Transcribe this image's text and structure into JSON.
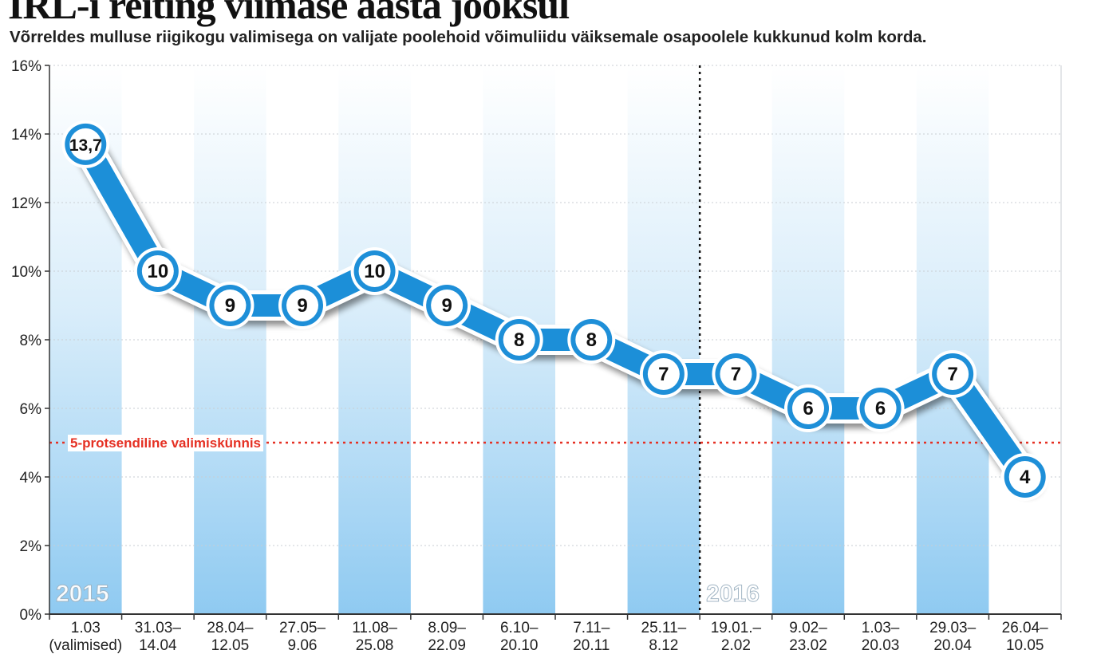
{
  "title": "IRL-i reiting viimase aasta jooksul",
  "subtitle": "Võrreldes mulluse riigikogu valimisega on valijate poolehoid võimuliidu väiksemale osapoolele kukkunud kolm korda.",
  "chart_data": {
    "type": "line",
    "categories": [
      [
        "1.03",
        "(valimised)"
      ],
      [
        "31.03–",
        "14.04"
      ],
      [
        "28.04–",
        "12.05"
      ],
      [
        "27.05–",
        "9.06"
      ],
      [
        "11.08–",
        "25.08"
      ],
      [
        "8.09–",
        "22.09"
      ],
      [
        "6.10–",
        "20.10"
      ],
      [
        "7.11–",
        "20.11"
      ],
      [
        "25.11–",
        "8.12"
      ],
      [
        "19.01.–",
        "2.02"
      ],
      [
        "9.02–",
        "23.02"
      ],
      [
        "1.03–",
        "20.03"
      ],
      [
        "29.03–",
        "20.04"
      ],
      [
        "26.04–",
        "10.05"
      ]
    ],
    "values": [
      13.7,
      10,
      9,
      9,
      10,
      9,
      8,
      8,
      7,
      7,
      6,
      6,
      7,
      4
    ],
    "value_labels": [
      "13,7",
      "10",
      "9",
      "9",
      "10",
      "9",
      "8",
      "8",
      "7",
      "7",
      "6",
      "6",
      "7",
      "4"
    ],
    "ylim": [
      0,
      16
    ],
    "yticks": [
      0,
      2,
      4,
      6,
      8,
      10,
      12,
      14,
      16
    ],
    "ytick_labels": [
      "0%",
      "2%",
      "4%",
      "6%",
      "8%",
      "10%",
      "12%",
      "14%",
      "16%"
    ],
    "threshold": {
      "value": 5,
      "label": "5-protsendiline valimiskünnis",
      "color": "#e53023"
    },
    "year_labels": [
      {
        "label": "2015",
        "start_index": 0
      },
      {
        "label": "2016",
        "start_index": 9
      }
    ],
    "year_divider_after_index": 8,
    "grid": true,
    "colors": {
      "line": "#1e8fd8",
      "point_fill": "#ffffff",
      "band": "#c6e3f7",
      "axis": "#333333"
    }
  }
}
